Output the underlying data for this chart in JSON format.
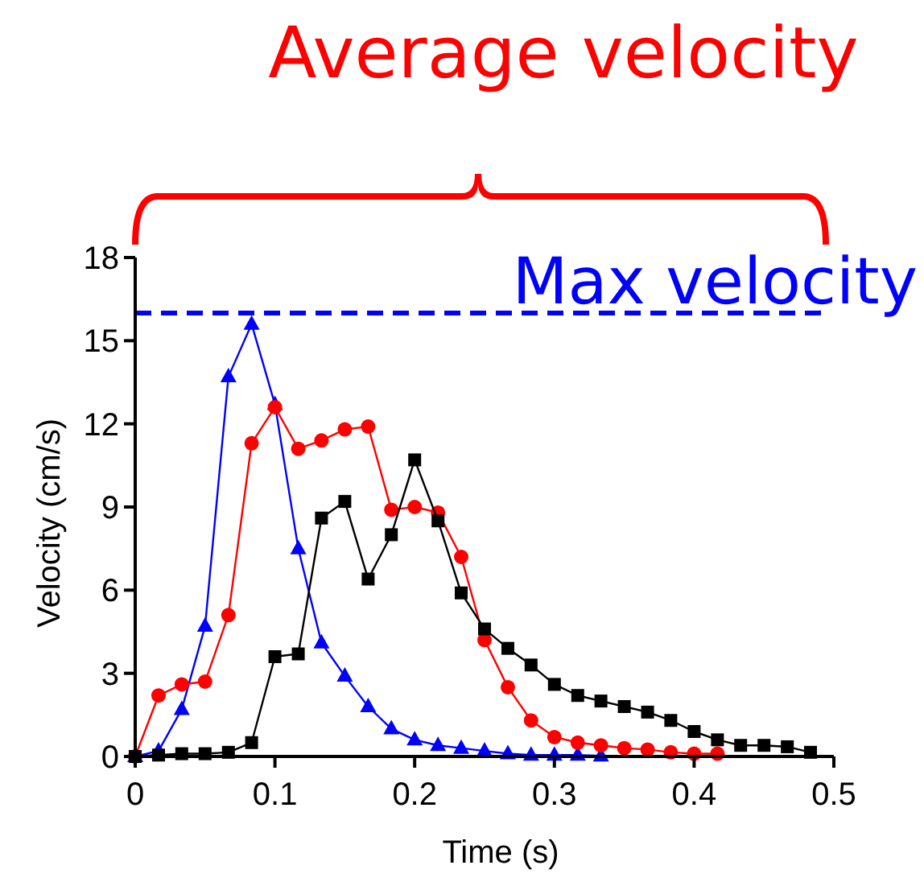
{
  "chart_data": {
    "type": "line",
    "xlabel": "Time (s)",
    "ylabel": "Velocity (cm/s)",
    "xlim": [
      0,
      0.5
    ],
    "ylim": [
      0,
      18
    ],
    "xticks": [
      0,
      0.1,
      0.2,
      0.3,
      0.4,
      0.5
    ],
    "yticks": [
      0,
      3,
      6,
      9,
      12,
      15,
      18
    ],
    "grid": false,
    "line_style": "solid",
    "series": [
      {
        "color": "#0000ff",
        "marker": "triangle",
        "x": [
          0,
          0.0167,
          0.0333,
          0.05,
          0.0667,
          0.0833,
          0.1,
          0.1167,
          0.1333,
          0.15,
          0.1667,
          0.1833,
          0.2,
          0.2167,
          0.2333,
          0.25,
          0.2667,
          0.2833,
          0.3,
          0.3167,
          0.3333
        ],
        "values": [
          0,
          0.2,
          1.7,
          4.7,
          13.7,
          15.6,
          12.7,
          7.5,
          4.1,
          2.9,
          1.8,
          1.0,
          0.6,
          0.4,
          0.3,
          0.2,
          0.1,
          0.05,
          0.05,
          0.05,
          0.02
        ]
      },
      {
        "color": "#ff0000",
        "marker": "circle",
        "x": [
          0,
          0.0167,
          0.0333,
          0.05,
          0.0667,
          0.0833,
          0.1,
          0.1167,
          0.1333,
          0.15,
          0.1667,
          0.1833,
          0.2,
          0.2167,
          0.2333,
          0.25,
          0.2667,
          0.2833,
          0.3,
          0.3167,
          0.3333,
          0.35,
          0.3667,
          0.3833,
          0.4,
          0.4167
        ],
        "values": [
          0,
          2.2,
          2.6,
          2.7,
          5.1,
          11.3,
          12.6,
          11.1,
          11.4,
          11.8,
          11.9,
          8.9,
          9.0,
          8.8,
          7.2,
          4.2,
          2.5,
          1.3,
          0.7,
          0.5,
          0.4,
          0.3,
          0.25,
          0.15,
          0.1,
          0.1
        ]
      },
      {
        "color": "#000000",
        "marker": "square",
        "x": [
          0,
          0.0167,
          0.0333,
          0.05,
          0.0667,
          0.0833,
          0.1,
          0.1167,
          0.1333,
          0.15,
          0.1667,
          0.1833,
          0.2,
          0.2167,
          0.2333,
          0.25,
          0.2667,
          0.2833,
          0.3,
          0.3167,
          0.3333,
          0.35,
          0.3667,
          0.3833,
          0.4,
          0.4167,
          0.4333,
          0.45,
          0.4667,
          0.4833
        ],
        "values": [
          0,
          0.05,
          0.1,
          0.1,
          0.15,
          0.5,
          3.6,
          3.7,
          8.6,
          9.2,
          6.4,
          8.0,
          10.7,
          8.5,
          5.9,
          4.6,
          3.9,
          3.3,
          2.6,
          2.2,
          2.0,
          1.8,
          1.6,
          1.3,
          0.9,
          0.6,
          0.4,
          0.4,
          0.35,
          0.15
        ]
      }
    ],
    "ref_lines": [
      {
        "axis": "y",
        "value": 16,
        "label": "Max velocity",
        "color": "#0000ff",
        "line_style": "dashed"
      }
    ],
    "annotations": [
      "Average velocity"
    ]
  }
}
